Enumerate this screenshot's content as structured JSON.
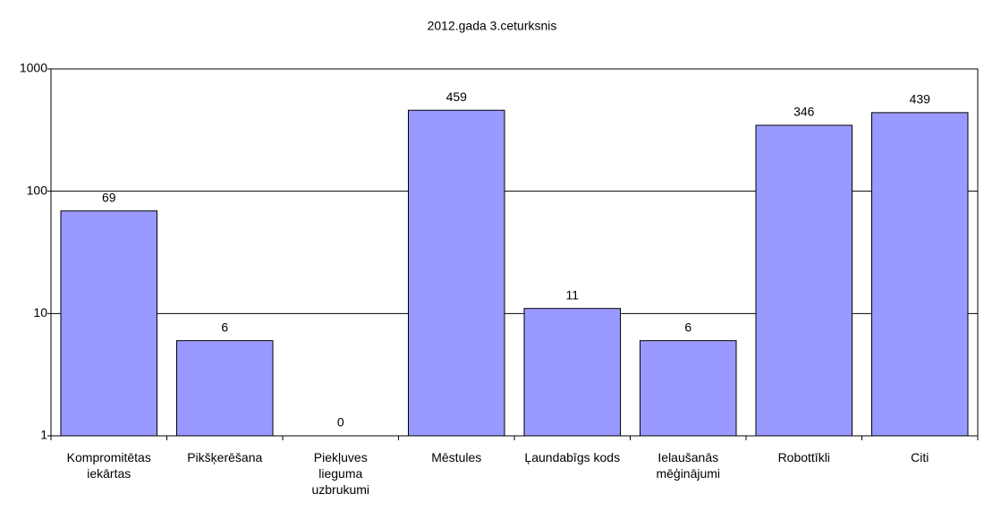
{
  "chart_data": {
    "type": "bar",
    "title": "2012.gada 3.ceturksnis",
    "categories": [
      "Kompromitētas\niekārtas",
      "Pikšķerēšana",
      "Piekļuves\nlieguma\nuzbrukumi",
      "Mēstules",
      "Ļaundabīgs kods",
      "Ielaušanās\nmēģinājumi",
      "Robottīkli",
      "Citi"
    ],
    "values": [
      69,
      6,
      0,
      459,
      11,
      6,
      346,
      439
    ],
    "color": "#9999ff",
    "log_scale": true,
    "ylim": [
      1,
      1000
    ],
    "yticks": [
      1,
      10,
      100,
      1000
    ],
    "grid": true
  }
}
